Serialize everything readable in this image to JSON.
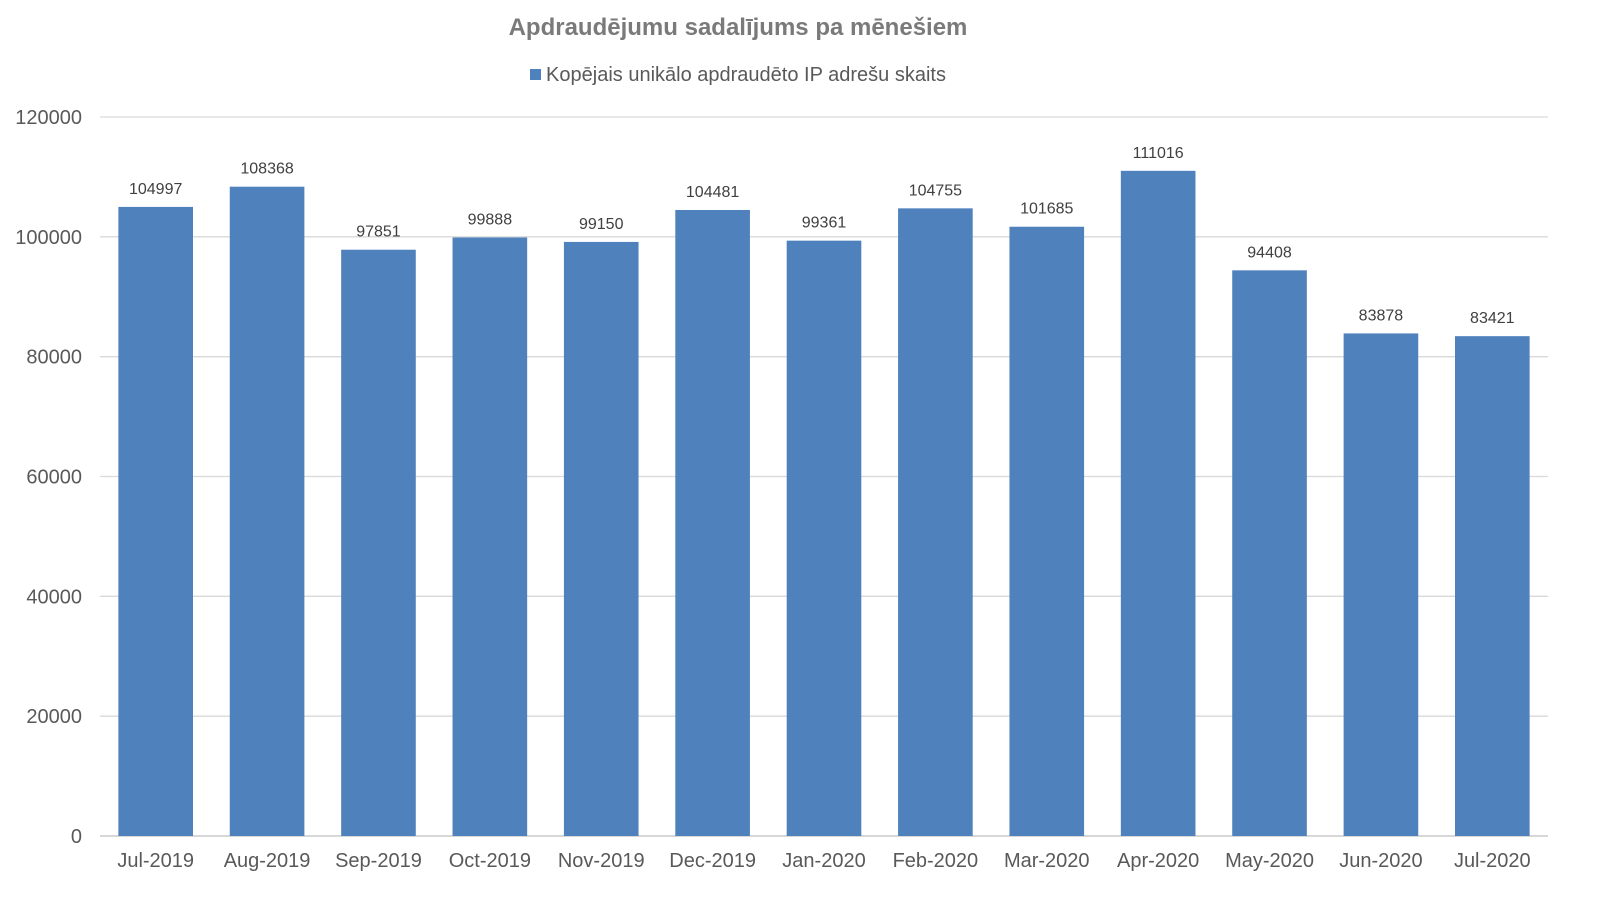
{
  "chart_data": {
    "type": "bar",
    "title": "Apdraudējumu sadalījums pa mēnešiem",
    "xlabel": "",
    "ylabel": "",
    "categories": [
      "Jul-2019",
      "Aug-2019",
      "Sep-2019",
      "Oct-2019",
      "Nov-2019",
      "Dec-2019",
      "Jan-2020",
      "Feb-2020",
      "Mar-2020",
      "Apr-2020",
      "May-2020",
      "Jun-2020",
      "Jul-2020"
    ],
    "series": [
      {
        "name": "Kopējais unikālo apdraudēto IP adrešu skaits",
        "values": [
          104997,
          108368,
          97851,
          99888,
          99150,
          104481,
          99361,
          104755,
          101685,
          111016,
          94408,
          83878,
          83421
        ],
        "color": "#4f81bd"
      }
    ],
    "ylim": [
      0,
      120000
    ],
    "yticks": [
      0,
      20000,
      40000,
      60000,
      80000,
      100000,
      120000
    ],
    "grid": true,
    "legend_position": "top",
    "data_labels": true
  }
}
